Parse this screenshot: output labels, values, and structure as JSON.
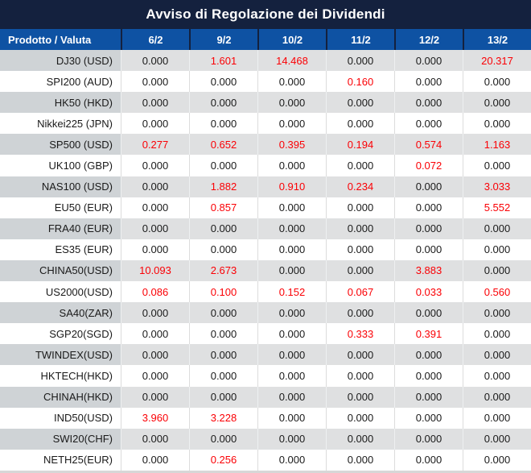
{
  "title": "Avviso di Regolazione dei Dividendi",
  "table": {
    "product_header": "Prodotto / Valuta",
    "date_headers": [
      "6/2",
      "9/2",
      "10/2",
      "11/2",
      "12/2",
      "13/2"
    ],
    "rows": [
      {
        "product": "DJ30 (USD)",
        "values": [
          {
            "text": "0.000",
            "red": false
          },
          {
            "text": "1.601",
            "red": true
          },
          {
            "text": "14.468",
            "red": true
          },
          {
            "text": "0.000",
            "red": false
          },
          {
            "text": "0.000",
            "red": false
          },
          {
            "text": "20.317",
            "red": true
          }
        ]
      },
      {
        "product": "SPI200 (AUD)",
        "values": [
          {
            "text": "0.000",
            "red": false
          },
          {
            "text": "0.000",
            "red": false
          },
          {
            "text": "0.000",
            "red": false
          },
          {
            "text": "0.160",
            "red": true
          },
          {
            "text": "0.000",
            "red": false
          },
          {
            "text": "0.000",
            "red": false
          }
        ]
      },
      {
        "product": "HK50 (HKD)",
        "values": [
          {
            "text": "0.000",
            "red": false
          },
          {
            "text": "0.000",
            "red": false
          },
          {
            "text": "0.000",
            "red": false
          },
          {
            "text": "0.000",
            "red": false
          },
          {
            "text": "0.000",
            "red": false
          },
          {
            "text": "0.000",
            "red": false
          }
        ]
      },
      {
        "product": "Nikkei225 (JPN)",
        "values": [
          {
            "text": "0.000",
            "red": false
          },
          {
            "text": "0.000",
            "red": false
          },
          {
            "text": "0.000",
            "red": false
          },
          {
            "text": "0.000",
            "red": false
          },
          {
            "text": "0.000",
            "red": false
          },
          {
            "text": "0.000",
            "red": false
          }
        ]
      },
      {
        "product": "SP500 (USD)",
        "values": [
          {
            "text": "0.277",
            "red": true
          },
          {
            "text": "0.652",
            "red": true
          },
          {
            "text": "0.395",
            "red": true
          },
          {
            "text": "0.194",
            "red": true
          },
          {
            "text": "0.574",
            "red": true
          },
          {
            "text": "1.163",
            "red": true
          }
        ]
      },
      {
        "product": "UK100 (GBP)",
        "values": [
          {
            "text": "0.000",
            "red": false
          },
          {
            "text": "0.000",
            "red": false
          },
          {
            "text": "0.000",
            "red": false
          },
          {
            "text": "0.000",
            "red": false
          },
          {
            "text": "0.072",
            "red": true
          },
          {
            "text": "0.000",
            "red": false
          }
        ]
      },
      {
        "product": "NAS100 (USD)",
        "values": [
          {
            "text": "0.000",
            "red": false
          },
          {
            "text": "1.882",
            "red": true
          },
          {
            "text": "0.910",
            "red": true
          },
          {
            "text": "0.234",
            "red": true
          },
          {
            "text": "0.000",
            "red": false
          },
          {
            "text": "3.033",
            "red": true
          }
        ]
      },
      {
        "product": "EU50 (EUR)",
        "values": [
          {
            "text": "0.000",
            "red": false
          },
          {
            "text": "0.857",
            "red": true
          },
          {
            "text": "0.000",
            "red": false
          },
          {
            "text": "0.000",
            "red": false
          },
          {
            "text": "0.000",
            "red": false
          },
          {
            "text": "5.552",
            "red": true
          }
        ]
      },
      {
        "product": "FRA40 (EUR)",
        "values": [
          {
            "text": "0.000",
            "red": false
          },
          {
            "text": "0.000",
            "red": false
          },
          {
            "text": "0.000",
            "red": false
          },
          {
            "text": "0.000",
            "red": false
          },
          {
            "text": "0.000",
            "red": false
          },
          {
            "text": "0.000",
            "red": false
          }
        ]
      },
      {
        "product": "ES35 (EUR)",
        "values": [
          {
            "text": "0.000",
            "red": false
          },
          {
            "text": "0.000",
            "red": false
          },
          {
            "text": "0.000",
            "red": false
          },
          {
            "text": "0.000",
            "red": false
          },
          {
            "text": "0.000",
            "red": false
          },
          {
            "text": "0.000",
            "red": false
          }
        ]
      },
      {
        "product": "CHINA50(USD)",
        "values": [
          {
            "text": "10.093",
            "red": true
          },
          {
            "text": "2.673",
            "red": true
          },
          {
            "text": "0.000",
            "red": false
          },
          {
            "text": "0.000",
            "red": false
          },
          {
            "text": "3.883",
            "red": true
          },
          {
            "text": "0.000",
            "red": false
          }
        ]
      },
      {
        "product": "US2000(USD)",
        "values": [
          {
            "text": "0.086",
            "red": true
          },
          {
            "text": "0.100",
            "red": true
          },
          {
            "text": "0.152",
            "red": true
          },
          {
            "text": "0.067",
            "red": true
          },
          {
            "text": "0.033",
            "red": true
          },
          {
            "text": "0.560",
            "red": true
          }
        ]
      },
      {
        "product": "SA40(ZAR)",
        "values": [
          {
            "text": "0.000",
            "red": false
          },
          {
            "text": "0.000",
            "red": false
          },
          {
            "text": "0.000",
            "red": false
          },
          {
            "text": "0.000",
            "red": false
          },
          {
            "text": "0.000",
            "red": false
          },
          {
            "text": "0.000",
            "red": false
          }
        ]
      },
      {
        "product": "SGP20(SGD)",
        "values": [
          {
            "text": "0.000",
            "red": false
          },
          {
            "text": "0.000",
            "red": false
          },
          {
            "text": "0.000",
            "red": false
          },
          {
            "text": "0.333",
            "red": true
          },
          {
            "text": "0.391",
            "red": true
          },
          {
            "text": "0.000",
            "red": false
          }
        ]
      },
      {
        "product": "TWINDEX(USD)",
        "values": [
          {
            "text": "0.000",
            "red": false
          },
          {
            "text": "0.000",
            "red": false
          },
          {
            "text": "0.000",
            "red": false
          },
          {
            "text": "0.000",
            "red": false
          },
          {
            "text": "0.000",
            "red": false
          },
          {
            "text": "0.000",
            "red": false
          }
        ]
      },
      {
        "product": "HKTECH(HKD)",
        "values": [
          {
            "text": "0.000",
            "red": false
          },
          {
            "text": "0.000",
            "red": false
          },
          {
            "text": "0.000",
            "red": false
          },
          {
            "text": "0.000",
            "red": false
          },
          {
            "text": "0.000",
            "red": false
          },
          {
            "text": "0.000",
            "red": false
          }
        ]
      },
      {
        "product": "CHINAH(HKD)",
        "values": [
          {
            "text": "0.000",
            "red": false
          },
          {
            "text": "0.000",
            "red": false
          },
          {
            "text": "0.000",
            "red": false
          },
          {
            "text": "0.000",
            "red": false
          },
          {
            "text": "0.000",
            "red": false
          },
          {
            "text": "0.000",
            "red": false
          }
        ]
      },
      {
        "product": "IND50(USD)",
        "values": [
          {
            "text": "3.960",
            "red": true
          },
          {
            "text": "3.228",
            "red": true
          },
          {
            "text": "0.000",
            "red": false
          },
          {
            "text": "0.000",
            "red": false
          },
          {
            "text": "0.000",
            "red": false
          },
          {
            "text": "0.000",
            "red": false
          }
        ]
      },
      {
        "product": "SWI20(CHF)",
        "values": [
          {
            "text": "0.000",
            "red": false
          },
          {
            "text": "0.000",
            "red": false
          },
          {
            "text": "0.000",
            "red": false
          },
          {
            "text": "0.000",
            "red": false
          },
          {
            "text": "0.000",
            "red": false
          },
          {
            "text": "0.000",
            "red": false
          }
        ]
      },
      {
        "product": "NETH25(EUR)",
        "values": [
          {
            "text": "0.000",
            "red": false
          },
          {
            "text": "0.256",
            "red": true
          },
          {
            "text": "0.000",
            "red": false
          },
          {
            "text": "0.000",
            "red": false
          },
          {
            "text": "0.000",
            "red": false
          },
          {
            "text": "0.000",
            "red": false
          }
        ]
      }
    ]
  },
  "colors": {
    "title_bar_bg": "#14213e",
    "header_bg": "#0e52a3",
    "header_text": "#ffffff",
    "row_gray_product_bg": "#cfd3d6",
    "row_gray_value_bg": "#dfe0e1",
    "row_white_bg": "#ffffff",
    "value_text": "#1a1a1a",
    "highlight_red": "#fb0005",
    "bottom_strip": "#d7d7d7"
  }
}
